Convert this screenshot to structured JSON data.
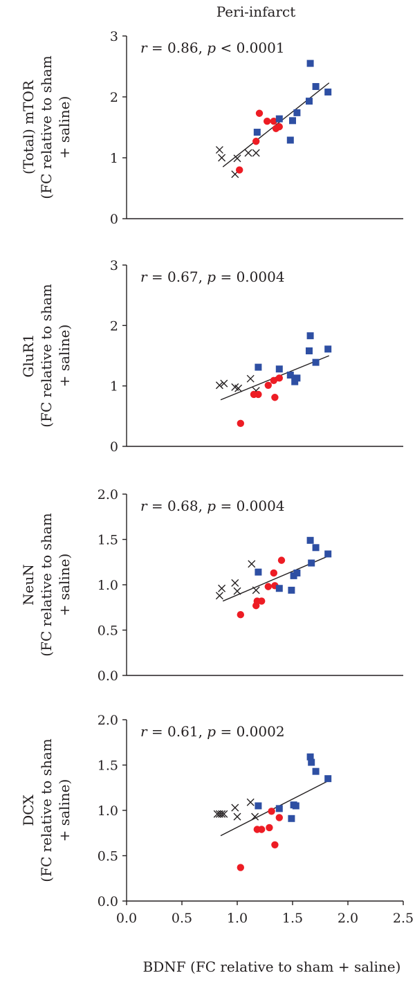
{
  "header": {
    "title": "Peri-infarct"
  },
  "x_axis": {
    "label": "BDNF (FC relative to sham + saline)",
    "ticks": [
      "0.0",
      "0.5",
      "1.0",
      "1.5",
      "2.0",
      "2.5"
    ],
    "range": [
      0,
      2.5
    ]
  },
  "colors": {
    "series_x": "#231f20",
    "series_circle": "#ed1c24",
    "series_square": "#2e4fa3"
  },
  "chart_data": [
    {
      "type": "scatter",
      "ylabel_line1": "(Total) mTOR",
      "ylabel_line2": "(FC relative to sham",
      "ylabel_line3": "+ saline)",
      "annotation": {
        "r_symbol": "r",
        "r_rest": " = 0.86, ",
        "p_symbol": "p",
        "p_rest": " < 0.0001"
      },
      "ylim": [
        0,
        3
      ],
      "yticks": [
        "0",
        "1",
        "2",
        "3"
      ],
      "yticks_values": [
        0,
        1,
        2,
        3
      ],
      "fit": {
        "x": [
          0.87,
          1.83
        ],
        "y": [
          0.85,
          2.23
        ]
      },
      "series": [
        {
          "marker": "x",
          "x": [
            0.84,
            0.86,
            0.98,
            1.0,
            1.1,
            1.17
          ],
          "y": [
            1.13,
            1.0,
            0.73,
            0.99,
            1.08,
            1.08
          ]
        },
        {
          "marker": "circle",
          "x": [
            1.02,
            1.17,
            1.2,
            1.27,
            1.33,
            1.35,
            1.38
          ],
          "y": [
            0.8,
            1.27,
            1.73,
            1.6,
            1.6,
            1.48,
            1.51
          ]
        },
        {
          "marker": "square",
          "x": [
            1.18,
            1.38,
            1.48,
            1.5,
            1.54,
            1.65,
            1.66,
            1.71,
            1.82
          ],
          "y": [
            1.42,
            1.64,
            1.29,
            1.61,
            1.74,
            1.93,
            2.55,
            2.17,
            2.08
          ]
        }
      ]
    },
    {
      "type": "scatter",
      "ylabel_line1": "GluR1",
      "ylabel_line2": "(FC relative to sham",
      "ylabel_line3": "+ saline)",
      "annotation": {
        "r_symbol": "r",
        "r_rest": " = 0.67, ",
        "p_symbol": "p",
        "p_rest": " = 0.0004"
      },
      "ylim": [
        0,
        3
      ],
      "yticks": [
        "0",
        "1",
        "2",
        "3"
      ],
      "yticks_values": [
        0,
        1,
        2,
        3
      ],
      "fit": {
        "x": [
          0.85,
          1.83
        ],
        "y": [
          0.77,
          1.5
        ]
      },
      "series": [
        {
          "marker": "x",
          "x": [
            0.84,
            0.88,
            0.98,
            1.01,
            1.12,
            1.17
          ],
          "y": [
            1.01,
            1.04,
            0.98,
            0.96,
            1.12,
            0.92
          ]
        },
        {
          "marker": "circle",
          "x": [
            1.03,
            1.15,
            1.19,
            1.28,
            1.33,
            1.34,
            1.38
          ],
          "y": [
            0.38,
            0.86,
            0.86,
            1.01,
            1.09,
            0.81,
            1.13
          ]
        },
        {
          "marker": "square",
          "x": [
            1.19,
            1.38,
            1.48,
            1.52,
            1.54,
            1.65,
            1.66,
            1.71,
            1.82
          ],
          "y": [
            1.31,
            1.28,
            1.18,
            1.07,
            1.13,
            1.58,
            1.83,
            1.39,
            1.61
          ]
        }
      ]
    },
    {
      "type": "scatter",
      "ylabel_line1": "NeuN",
      "ylabel_line2": "(FC relative to sham",
      "ylabel_line3": "+ saline)",
      "annotation": {
        "r_symbol": "r",
        "r_rest": " = 0.68, ",
        "p_symbol": "p",
        "p_rest": " = 0.0004"
      },
      "ylim": [
        0,
        2
      ],
      "yticks": [
        "0.0",
        "0.5",
        "1.0",
        "1.5",
        "2.0"
      ],
      "yticks_values": [
        0,
        0.5,
        1,
        1.5,
        2
      ],
      "fit": {
        "x": [
          0.87,
          1.83
        ],
        "y": [
          0.82,
          1.32
        ]
      },
      "series": [
        {
          "marker": "x",
          "x": [
            0.84,
            0.86,
            0.98,
            1.0,
            1.13,
            1.17
          ],
          "y": [
            0.88,
            0.96,
            1.02,
            0.93,
            1.23,
            0.94
          ]
        },
        {
          "marker": "circle",
          "x": [
            1.03,
            1.17,
            1.18,
            1.22,
            1.28,
            1.33,
            1.34,
            1.4
          ],
          "y": [
            0.67,
            0.77,
            0.82,
            0.82,
            0.98,
            1.13,
            0.99,
            1.27
          ]
        },
        {
          "marker": "square",
          "x": [
            1.19,
            1.38,
            1.49,
            1.51,
            1.54,
            1.66,
            1.67,
            1.71,
            1.82
          ],
          "y": [
            1.14,
            0.96,
            0.94,
            1.1,
            1.13,
            1.49,
            1.24,
            1.41,
            1.34
          ]
        }
      ]
    },
    {
      "type": "scatter",
      "ylabel_line1": "DCX",
      "ylabel_line2": "(FC relative to sham",
      "ylabel_line3": "+ saline)",
      "annotation": {
        "r_symbol": "r",
        "r_rest": " = 0.61, ",
        "p_symbol": "p",
        "p_rest": " = 0.0002"
      },
      "ylim": [
        0,
        2
      ],
      "yticks": [
        "0.0",
        "0.5",
        "1.0",
        "1.5",
        "2.0"
      ],
      "yticks_values": [
        0,
        0.5,
        1,
        1.5,
        2
      ],
      "fit": {
        "x": [
          0.85,
          1.83
        ],
        "y": [
          0.72,
          1.33
        ]
      },
      "series": [
        {
          "marker": "x",
          "x": [
            0.82,
            0.84,
            0.86,
            0.88,
            0.98,
            1.0,
            1.12,
            1.16
          ],
          "y": [
            0.96,
            0.96,
            0.96,
            0.96,
            1.03,
            0.93,
            1.09,
            0.93
          ]
        },
        {
          "marker": "circle",
          "x": [
            1.03,
            1.18,
            1.22,
            1.29,
            1.31,
            1.34,
            1.38
          ],
          "y": [
            0.37,
            0.79,
            0.79,
            0.81,
            0.99,
            0.62,
            0.92
          ]
        },
        {
          "marker": "square",
          "x": [
            1.19,
            1.38,
            1.49,
            1.51,
            1.53,
            1.66,
            1.67,
            1.71,
            1.82
          ],
          "y": [
            1.05,
            1.02,
            0.91,
            1.06,
            1.05,
            1.59,
            1.53,
            1.43,
            1.35
          ]
        }
      ]
    }
  ]
}
